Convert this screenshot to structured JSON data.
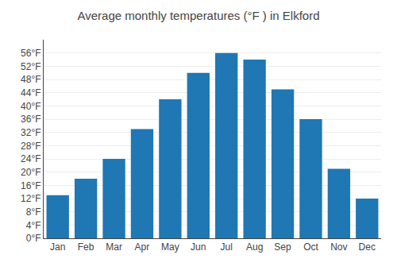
{
  "chart_data": {
    "type": "bar",
    "title": "Average monthly temperatures (°F ) in Elkford",
    "categories": [
      "Jan",
      "Feb",
      "Mar",
      "Apr",
      "May",
      "Jun",
      "Jul",
      "Aug",
      "Sep",
      "Oct",
      "Nov",
      "Dec"
    ],
    "values": [
      13,
      18,
      24,
      33,
      42,
      50,
      56,
      54,
      45,
      36,
      21,
      12
    ],
    "ylim": [
      0,
      60
    ],
    "yticks": [
      {
        "value": 0,
        "label": "0°F"
      },
      {
        "value": 4,
        "label": "4°F"
      },
      {
        "value": 8,
        "label": "8°F"
      },
      {
        "value": 12,
        "label": "12°F"
      },
      {
        "value": 16,
        "label": "16°F"
      },
      {
        "value": 20,
        "label": "20°F"
      },
      {
        "value": 24,
        "label": "24°F"
      },
      {
        "value": 28,
        "label": "28°F"
      },
      {
        "value": 32,
        "label": "32°F"
      },
      {
        "value": 36,
        "label": "36°F"
      },
      {
        "value": 40,
        "label": "40°F"
      },
      {
        "value": 44,
        "label": "44°F"
      },
      {
        "value": 48,
        "label": "48°F"
      },
      {
        "value": 52,
        "label": "52°F"
      },
      {
        "value": 56,
        "label": "56°F"
      }
    ],
    "grid": true
  }
}
